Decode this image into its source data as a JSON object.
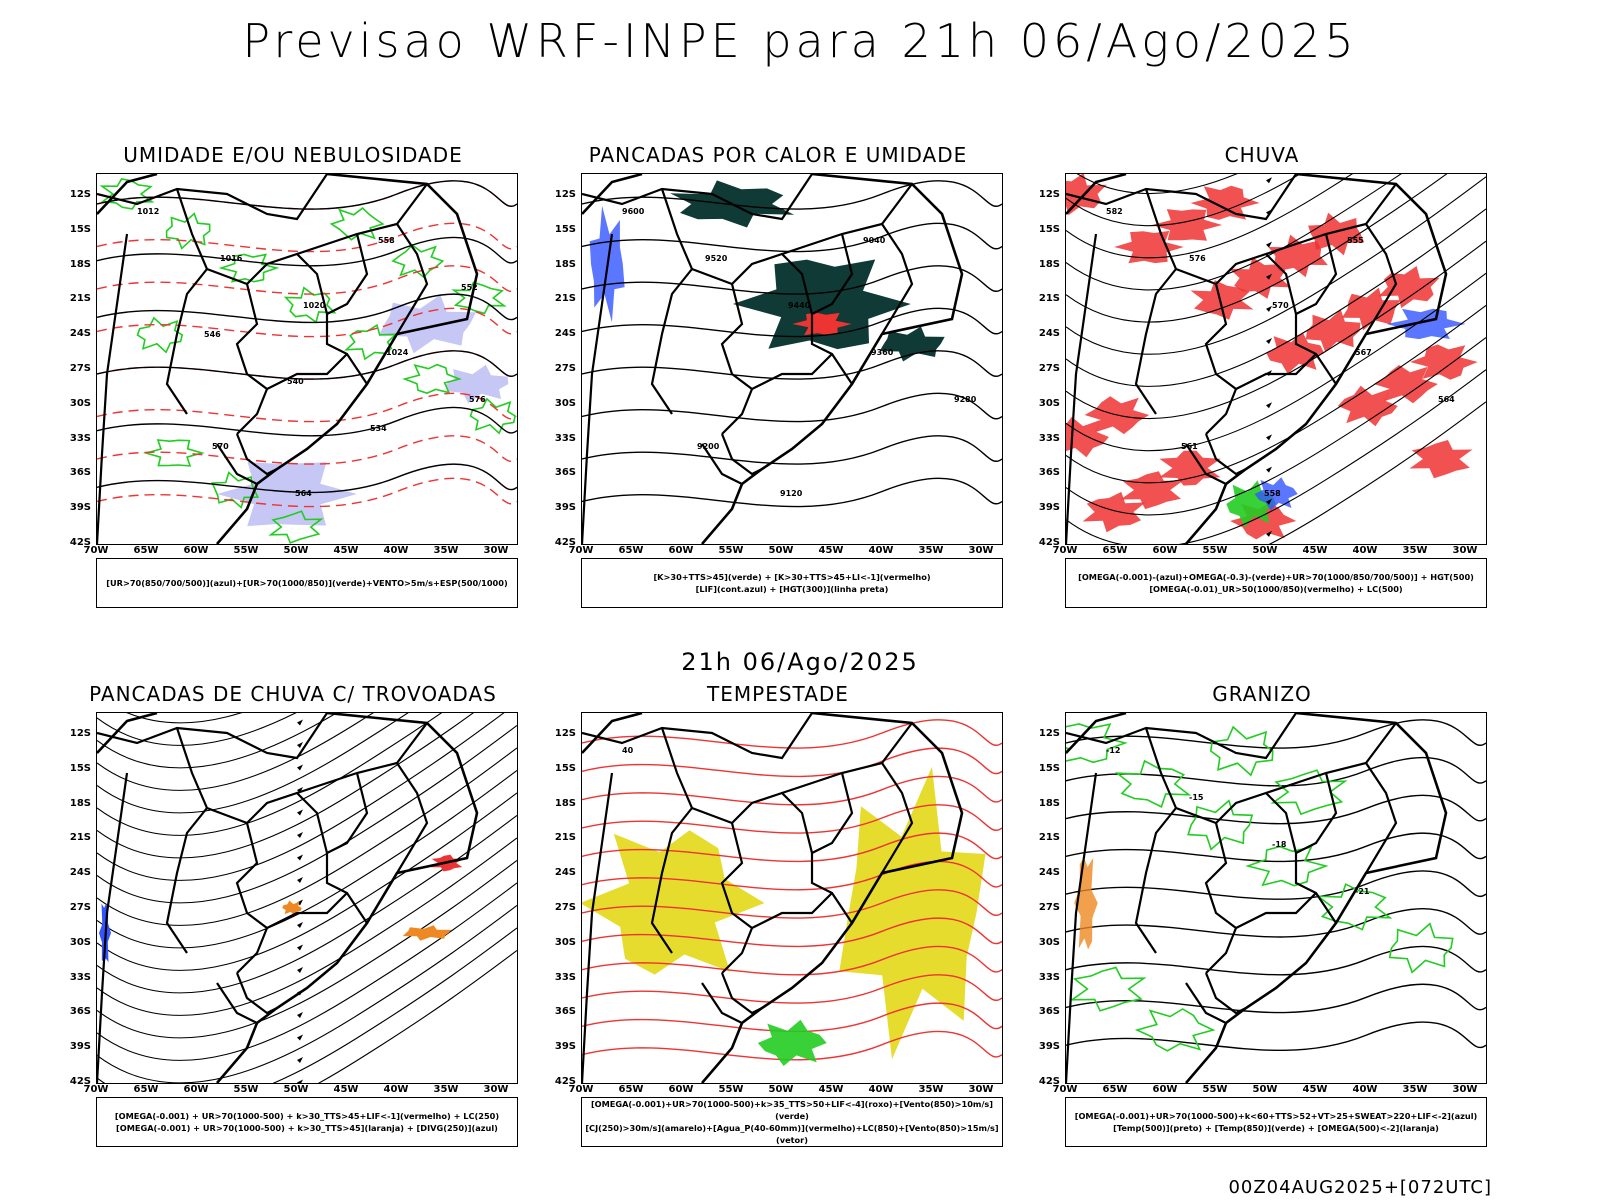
{
  "title": "Previsao WRF-INPE  para 21h 06/Ago/2025",
  "mid_time": "21h 06/Ago/2025",
  "footer": "00Z04AUG2025+[072UTC]",
  "lat_ticks": [
    "12S",
    "15S",
    "18S",
    "21S",
    "24S",
    "27S",
    "30S",
    "33S",
    "36S",
    "39S",
    "42S"
  ],
  "lon_ticks": [
    "70W",
    "65W",
    "60W",
    "55W",
    "50W",
    "45W",
    "40W",
    "35W",
    "30W"
  ],
  "colors": {
    "blue": "#3355ff",
    "green": "#22cc22",
    "red": "#ee3333",
    "orange": "#ee8822",
    "yellow": "#e6dc2e",
    "darkteal": "#0f3a36",
    "lavender": "#9999ee",
    "contour": "#000000"
  },
  "panels": [
    {
      "title": "UMIDADE E/OU NEBULOSIDADE",
      "legend": [
        "[UR>70(850/700/500)](azul)+[UR>70(1000/850)](verde)+VENTO>5m/s+ESP(500/1000)"
      ],
      "contour_labels": [
        "1012",
        "1016",
        "1020",
        "1024",
        "576",
        "570",
        "564",
        "558",
        "552",
        "546",
        "540",
        "534"
      ]
    },
    {
      "title": "PANCADAS POR CALOR E UMIDADE",
      "legend": [
        "[K>30+TTS>45](verde) + [K>30+TTS>45+LI<-1](vermelho)",
        "[LIF](cont.azul) + [HGT(300)](linha preta)"
      ],
      "contour_labels": [
        "9600",
        "9520",
        "9440",
        "9360",
        "9280",
        "9200",
        "9120",
        "9040"
      ]
    },
    {
      "title": "CHUVA",
      "legend": [
        "[OMEGA(-0.001)-(azul)+OMEGA(-0.3)-(verde)+UR>70(1000/850/700/500)] + HGT(500)",
        "[OMEGA(-0.01)_UR>50(1000/850)(vermelho) + LC(500)"
      ],
      "contour_labels": [
        "582",
        "576",
        "570",
        "567",
        "564",
        "561",
        "558",
        "555"
      ]
    },
    {
      "title": "PANCADAS DE CHUVA C/ TROVOADAS",
      "legend": [
        "[OMEGA(-0.001) + UR>70(1000-500) + k>30_TTS>45+LIF<-1](vermelho) + LC(250)",
        "[OMEGA(-0.001) + UR>70(1000-500) + k>30_TTS>45](laranja) + [DIVG(250)](azul)"
      ],
      "contour_labels": []
    },
    {
      "title": "TEMPESTADE",
      "legend": [
        "[OMEGA(-0.001)+UR>70(1000-500)+k>35_TTS>50+LIF<-4](roxo)+[Vento(850)>10m/s](verde)",
        "[CJ(250)>30m/s](amarelo)+[Agua_P(40-60mm)](vermelho)+LC(850)+[Vento(850)>15m/s](vetor)"
      ],
      "contour_labels": [
        "40"
      ]
    },
    {
      "title": "GRANIZO",
      "legend": [
        "[OMEGA(-0.001)+UR>70(1000-500)+k<60+TTS>52+VT>25+SWEAT>220+LIF<-2](azul)",
        "[Temp(500)](preto) + [Temp(850)](verde) + [OMEGA(500)<-2](laranja)"
      ],
      "contour_labels": [
        "-12",
        "-15",
        "-18",
        "-21"
      ]
    }
  ]
}
